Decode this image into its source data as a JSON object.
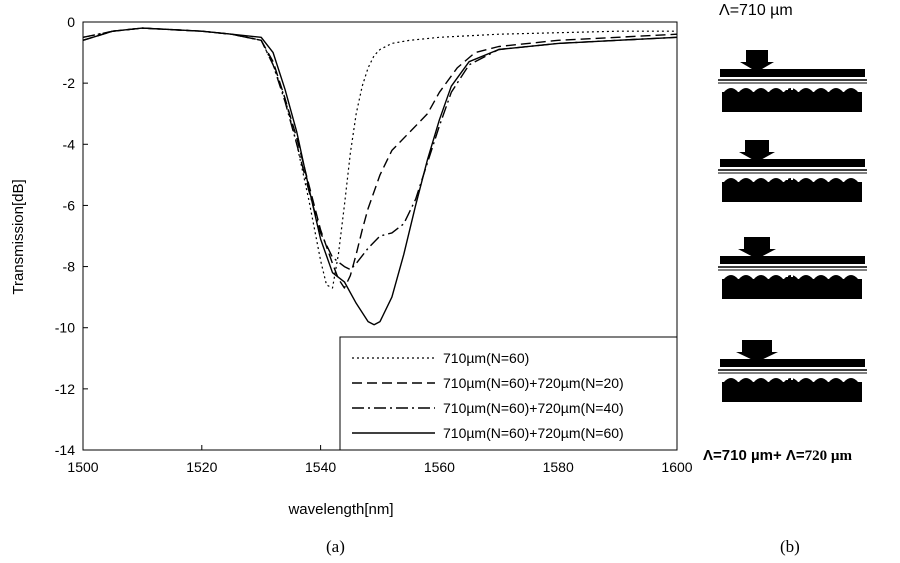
{
  "chart_data": {
    "type": "line",
    "title": "",
    "xlabel": "wavelength[nm]",
    "ylabel": "Transmission[dB]",
    "xlim": [
      1500,
      1600
    ],
    "ylim": [
      -14,
      0
    ],
    "x_ticks": [
      "1500",
      "1520",
      "1540",
      "1560",
      "1580",
      "1600"
    ],
    "y_ticks": [
      "0",
      "-2",
      "-4",
      "-6",
      "-8",
      "-10",
      "-12",
      "-14"
    ],
    "grid": false,
    "legend_position": "bottom-right",
    "series": [
      {
        "name": "710µm(N=60)",
        "dash": "2,3",
        "x": [
          1500,
          1505,
          1510,
          1520,
          1525,
          1530,
          1532,
          1534,
          1536,
          1538,
          1540,
          1541,
          1542,
          1543,
          1544,
          1545,
          1546,
          1547,
          1548,
          1549,
          1550,
          1552,
          1555,
          1560,
          1570,
          1580,
          1590,
          1600
        ],
        "y": [
          -0.5,
          -0.3,
          -0.2,
          -0.3,
          -0.4,
          -0.6,
          -1.4,
          -2.5,
          -4.0,
          -5.8,
          -7.8,
          -8.6,
          -8.7,
          -7.6,
          -6.0,
          -4.3,
          -3.0,
          -2.1,
          -1.5,
          -1.1,
          -0.9,
          -0.7,
          -0.6,
          -0.5,
          -0.4,
          -0.35,
          -0.3,
          -0.3
        ]
      },
      {
        "name": "710µm(N=60)+720µm(N=20)",
        "dash": "10,5",
        "x": [
          1500,
          1505,
          1510,
          1520,
          1525,
          1530,
          1532,
          1534,
          1536,
          1538,
          1540,
          1542,
          1543,
          1544,
          1545,
          1546,
          1547,
          1548,
          1550,
          1552,
          1555,
          1558,
          1560,
          1563,
          1566,
          1570,
          1580,
          1590,
          1600
        ],
        "y": [
          -0.6,
          -0.3,
          -0.2,
          -0.3,
          -0.4,
          -0.6,
          -1.3,
          -2.5,
          -3.8,
          -5.3,
          -6.8,
          -7.9,
          -8.4,
          -8.7,
          -8.3,
          -7.6,
          -6.8,
          -6.1,
          -5.0,
          -4.2,
          -3.6,
          -3.0,
          -2.3,
          -1.5,
          -1.0,
          -0.8,
          -0.6,
          -0.5,
          -0.4
        ]
      },
      {
        "name": "710µm(N=60)+720µm(N=40)",
        "dash": "12,4,2,4",
        "x": [
          1500,
          1505,
          1510,
          1520,
          1525,
          1530,
          1532,
          1534,
          1536,
          1538,
          1540,
          1542,
          1544,
          1545,
          1546,
          1548,
          1550,
          1552,
          1554,
          1556,
          1558,
          1560,
          1562,
          1565,
          1570,
          1580,
          1590,
          1600
        ],
        "y": [
          -0.5,
          -0.3,
          -0.2,
          -0.3,
          -0.4,
          -0.6,
          -1.4,
          -2.6,
          -4.0,
          -5.5,
          -6.9,
          -7.7,
          -8.0,
          -8.1,
          -7.9,
          -7.4,
          -7.0,
          -6.9,
          -6.6,
          -5.8,
          -4.6,
          -3.4,
          -2.3,
          -1.4,
          -0.9,
          -0.7,
          -0.6,
          -0.5
        ]
      },
      {
        "name": "710µm(N=60)+720µm(N=60)",
        "dash": "",
        "x": [
          1500,
          1505,
          1510,
          1520,
          1525,
          1530,
          1532,
          1534,
          1536,
          1538,
          1540,
          1542,
          1544,
          1546,
          1548,
          1549,
          1550,
          1552,
          1554,
          1556,
          1558,
          1560,
          1562,
          1565,
          1570,
          1580,
          1590,
          1600
        ],
        "y": [
          -0.6,
          -0.3,
          -0.2,
          -0.3,
          -0.4,
          -0.5,
          -1.0,
          -2.2,
          -3.6,
          -5.4,
          -7.1,
          -8.2,
          -8.5,
          -9.2,
          -9.8,
          -9.9,
          -9.8,
          -9.0,
          -7.6,
          -6.0,
          -4.5,
          -3.2,
          -2.1,
          -1.3,
          -0.9,
          -0.7,
          -0.6,
          -0.5
        ]
      }
    ]
  },
  "captions": {
    "a": "(a)",
    "b": "(b)"
  },
  "diagram": {
    "top_label": "Λ=710 µm",
    "bottom_label_part1": "Λ=710 µm+ Λ=",
    "bottom_label_part2": "720 µm"
  }
}
